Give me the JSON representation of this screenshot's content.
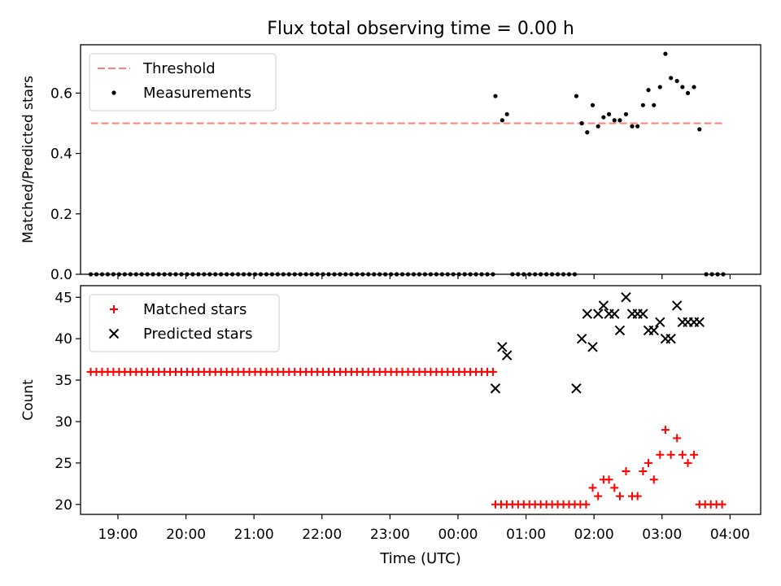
{
  "chart_data": {
    "title": "Flux total observing time = 0.00 h",
    "xlabel": "Time (UTC)",
    "x_unit": "hours past 00:00 UTC of the second day; negative values are the previous evening",
    "xlim": [
      -5.55,
      4.45
    ],
    "xticks": [
      {
        "value": -5,
        "label": "19:00"
      },
      {
        "value": -4,
        "label": "20:00"
      },
      {
        "value": -3,
        "label": "21:00"
      },
      {
        "value": -2,
        "label": "22:00"
      },
      {
        "value": -1,
        "label": "23:00"
      },
      {
        "value": 0,
        "label": "00:00"
      },
      {
        "value": 1,
        "label": "01:00"
      },
      {
        "value": 2,
        "label": "02:00"
      },
      {
        "value": 3,
        "label": "03:00"
      },
      {
        "value": 4,
        "label": "04:00"
      }
    ],
    "panels": [
      {
        "type": "scatter",
        "ylabel": "Matched/Predicted stars",
        "ylim": [
          0.0,
          0.76
        ],
        "yticks": [
          "0.0",
          "0.2",
          "0.4",
          "0.6"
        ],
        "ytick_values": [
          0.0,
          0.2,
          0.4,
          0.6
        ],
        "legend": "top-left",
        "threshold": {
          "name": "Threshold",
          "value": 0.5,
          "x_range": [
            -5.4,
            3.9
          ],
          "color": "#ff7f7f",
          "style": "dashed"
        },
        "series": [
          {
            "name": "Measurements",
            "color": "#000000",
            "marker": "dot",
            "zero_run": {
              "value": 0.0,
              "ranges": [
                [
                  -5.4,
                  0.5
                ],
                [
                  0.8,
                  1.7
                ],
                [
                  3.65,
                  3.9
                ]
              ],
              "step": 0.0833
            },
            "points": [
              [
                0.55,
                0.59
              ],
              [
                0.65,
                0.51
              ],
              [
                0.72,
                0.53
              ],
              [
                1.74,
                0.59
              ],
              [
                1.82,
                0.5
              ],
              [
                1.9,
                0.47
              ],
              [
                1.98,
                0.56
              ],
              [
                2.06,
                0.49
              ],
              [
                2.14,
                0.52
              ],
              [
                2.22,
                0.53
              ],
              [
                2.3,
                0.51
              ],
              [
                2.38,
                0.51
              ],
              [
                2.47,
                0.53
              ],
              [
                2.56,
                0.49
              ],
              [
                2.64,
                0.49
              ],
              [
                2.72,
                0.56
              ],
              [
                2.8,
                0.61
              ],
              [
                2.88,
                0.56
              ],
              [
                2.97,
                0.62
              ],
              [
                3.05,
                0.73
              ],
              [
                3.13,
                0.65
              ],
              [
                3.22,
                0.64
              ],
              [
                3.3,
                0.62
              ],
              [
                3.38,
                0.6
              ],
              [
                3.47,
                0.62
              ],
              [
                3.55,
                0.48
              ]
            ]
          }
        ]
      },
      {
        "type": "scatter",
        "ylabel": "Count",
        "ylim": [
          18.8,
          46.4
        ],
        "yticks": [
          "20",
          "25",
          "30",
          "35",
          "40",
          "45"
        ],
        "ytick_values": [
          20,
          25,
          30,
          35,
          40,
          45
        ],
        "legend": "top-left",
        "series": [
          {
            "name": "Matched stars",
            "color": "#ff0000",
            "marker": "plus",
            "constant_runs": [
              {
                "value": 36,
                "range": [
                  -5.4,
                  0.5
                ],
                "step": 0.0833
              },
              {
                "value": 20,
                "range": [
                  0.55,
                  1.9
                ],
                "step": 0.0833
              },
              {
                "value": 20,
                "range": [
                  3.55,
                  3.9
                ],
                "step": 0.0833
              }
            ],
            "points": [
              [
                1.98,
                22
              ],
              [
                2.06,
                21
              ],
              [
                2.14,
                23
              ],
              [
                2.22,
                23
              ],
              [
                2.3,
                22
              ],
              [
                2.38,
                21
              ],
              [
                2.47,
                24
              ],
              [
                2.56,
                21
              ],
              [
                2.64,
                21
              ],
              [
                2.72,
                24
              ],
              [
                2.8,
                25
              ],
              [
                2.88,
                23
              ],
              [
                2.97,
                26
              ],
              [
                3.05,
                29
              ],
              [
                3.13,
                26
              ],
              [
                3.22,
                28
              ],
              [
                3.3,
                26
              ],
              [
                3.38,
                25
              ],
              [
                3.47,
                26
              ]
            ]
          },
          {
            "name": "Predicted stars",
            "color": "#000000",
            "marker": "x",
            "points": [
              [
                0.55,
                34
              ],
              [
                0.65,
                39
              ],
              [
                0.72,
                38
              ],
              [
                1.74,
                34
              ],
              [
                1.82,
                40
              ],
              [
                1.9,
                43
              ],
              [
                1.98,
                39
              ],
              [
                2.06,
                43
              ],
              [
                2.14,
                44
              ],
              [
                2.22,
                43
              ],
              [
                2.3,
                43
              ],
              [
                2.38,
                41
              ],
              [
                2.47,
                45
              ],
              [
                2.56,
                43
              ],
              [
                2.64,
                43
              ],
              [
                2.72,
                43
              ],
              [
                2.8,
                41
              ],
              [
                2.88,
                41
              ],
              [
                2.97,
                42
              ],
              [
                3.05,
                40
              ],
              [
                3.13,
                40
              ],
              [
                3.22,
                44
              ],
              [
                3.3,
                42
              ],
              [
                3.38,
                42
              ],
              [
                3.47,
                42
              ],
              [
                3.55,
                42
              ]
            ]
          }
        ]
      }
    ]
  }
}
